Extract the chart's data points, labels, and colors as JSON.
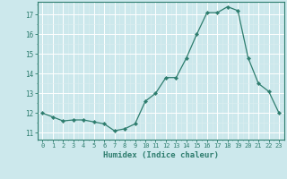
{
  "x": [
    0,
    1,
    2,
    3,
    4,
    5,
    6,
    7,
    8,
    9,
    10,
    11,
    12,
    13,
    14,
    15,
    16,
    17,
    18,
    19,
    20,
    21,
    22,
    23
  ],
  "y": [
    12.0,
    11.8,
    11.6,
    11.65,
    11.65,
    11.55,
    11.45,
    11.1,
    11.2,
    11.45,
    12.6,
    13.0,
    13.8,
    13.8,
    14.8,
    16.0,
    17.1,
    17.1,
    17.4,
    17.2,
    14.8,
    13.5,
    13.1,
    12.0
  ],
  "line_color": "#2e7d6e",
  "marker": "D",
  "marker_size": 2.2,
  "bg_color": "#cce8ec",
  "grid_major_color": "#ffffff",
  "grid_minor_color": "#ddeef0",
  "xlabel": "Humidex (Indice chaleur)",
  "yticks": [
    11,
    12,
    13,
    14,
    15,
    16,
    17
  ],
  "xticks": [
    0,
    1,
    2,
    3,
    4,
    5,
    6,
    7,
    8,
    9,
    10,
    11,
    12,
    13,
    14,
    15,
    16,
    17,
    18,
    19,
    20,
    21,
    22,
    23
  ],
  "tick_color": "#2e7d6e",
  "axis_color": "#2e7d6e",
  "font_family": "monospace"
}
